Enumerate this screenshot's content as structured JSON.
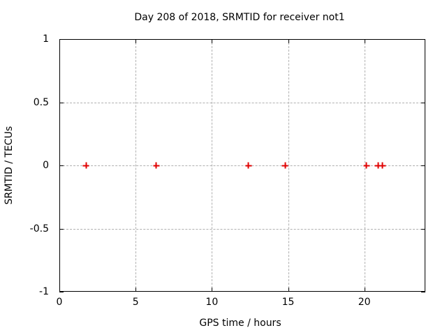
{
  "chart_data": {
    "type": "scatter",
    "title": "Day 208 of 2018, SRMTID for receiver not1",
    "xlabel": "GPS time / hours",
    "ylabel": "SRMTID / TECUs",
    "xlim": [
      0,
      24
    ],
    "ylim": [
      -1,
      1
    ],
    "x_ticks": [
      0,
      5,
      10,
      15,
      20
    ],
    "x_tick_labels": [
      "0",
      "5",
      "10",
      "15",
      "20"
    ],
    "y_ticks": [
      1,
      0.5,
      0,
      -0.5,
      -1
    ],
    "y_tick_labels": [
      "1",
      "0.5",
      "0",
      "-0.5",
      "-1"
    ],
    "grid": true,
    "legend_position": "none",
    "series": [
      {
        "name": "SRMTID",
        "marker": "plus",
        "color": "#e00000",
        "x": [
          1.75,
          6.35,
          12.4,
          14.8,
          20.15,
          20.9,
          21.2
        ],
        "y": [
          0,
          0,
          0,
          0,
          0,
          0,
          0
        ]
      }
    ]
  },
  "colors": {
    "background": "#ffffff",
    "axis": "#000000",
    "grid": "#b0b0b0",
    "marker": "#e00000"
  }
}
